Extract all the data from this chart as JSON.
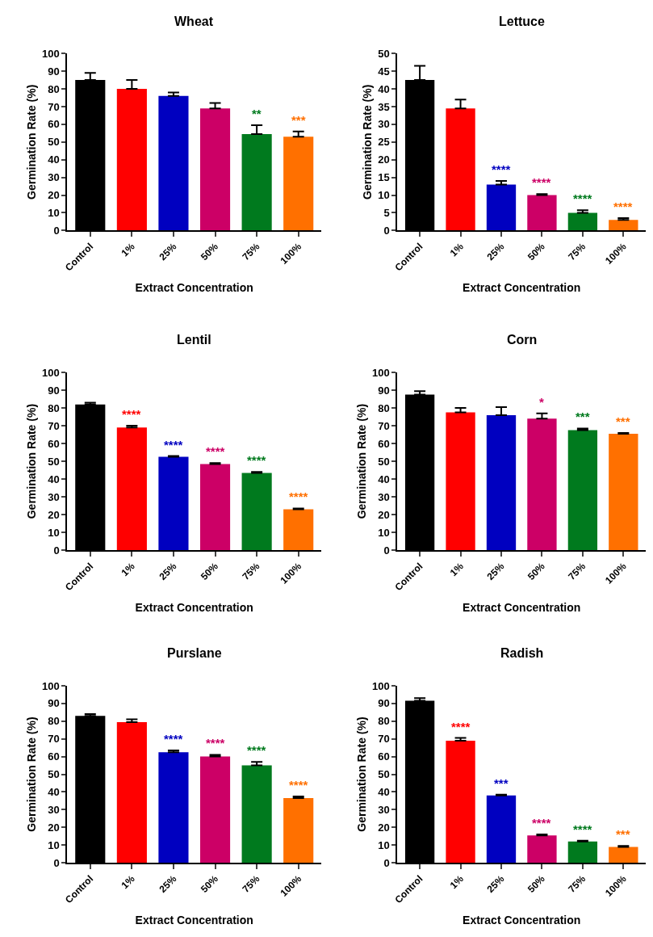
{
  "chart_data": [
    {
      "type": "bar",
      "title": "Wheat",
      "xlabel": "Extract Concentration",
      "ylabel": "Germination Rate (%)",
      "categories": [
        "Control",
        "1%",
        "25%",
        "50%",
        "75%",
        "100%"
      ],
      "values": [
        85,
        80,
        76,
        69,
        54.5,
        53
      ],
      "errors": [
        [
          85,
          89
        ],
        [
          80,
          85
        ],
        [
          76,
          78
        ],
        [
          69,
          72
        ],
        [
          54.5,
          59.5
        ],
        [
          53,
          56
        ]
      ],
      "colors": [
        "#000000",
        "#ff0000",
        "#0000c0",
        "#cc0066",
        "#007a1e",
        "#ff7000"
      ],
      "ylim": [
        0,
        100
      ],
      "yticks": [
        0,
        10,
        20,
        30,
        40,
        50,
        60,
        70,
        80,
        90,
        100
      ],
      "legend": false,
      "annotations": [
        {
          "text": "**",
          "x": "75%",
          "y": 59.5
        },
        {
          "text": "***",
          "x": "100%",
          "y": 56
        }
      ]
    },
    {
      "type": "bar",
      "title": "Lettuce",
      "xlabel": "Extract Concentration",
      "ylabel": "Germination Rate (%)",
      "categories": [
        "Control",
        "1%",
        "25%",
        "50%",
        "75%",
        "100%"
      ],
      "values": [
        42.5,
        34.5,
        13,
        10,
        5,
        3
      ],
      "errors": [
        [
          42.5,
          46.5
        ],
        [
          34.5,
          37
        ],
        [
          13,
          14
        ],
        [
          10,
          10.3
        ],
        [
          5,
          5.7
        ],
        [
          3,
          3.5
        ]
      ],
      "colors": [
        "#000000",
        "#ff0000",
        "#0000c0",
        "#cc0066",
        "#007a1e",
        "#ff7000"
      ],
      "ylim": [
        0,
        50
      ],
      "yticks": [
        0,
        5,
        10,
        15,
        20,
        25,
        30,
        35,
        40,
        45,
        50
      ],
      "legend": false,
      "annotations": [
        {
          "text": "****",
          "x": "25%",
          "y": 14
        },
        {
          "text": "****",
          "x": "50%",
          "y": 10.3
        },
        {
          "text": "****",
          "x": "75%",
          "y": 5.7
        },
        {
          "text": "****",
          "x": "100%",
          "y": 3.5
        }
      ]
    },
    {
      "type": "bar",
      "title": "Lentil",
      "xlabel": "Extract Concentration",
      "ylabel": "Germination Rate (%)",
      "categories": [
        "Control",
        "1%",
        "25%",
        "50%",
        "75%",
        "100%"
      ],
      "values": [
        82,
        69,
        52.5,
        48.5,
        43.5,
        23
      ],
      "errors": [
        [
          82,
          83
        ],
        [
          69,
          70
        ],
        [
          52.5,
          53
        ],
        [
          48.5,
          49
        ],
        [
          43.5,
          44
        ],
        [
          23,
          23.5
        ]
      ],
      "colors": [
        "#000000",
        "#ff0000",
        "#0000c0",
        "#cc0066",
        "#007a1e",
        "#ff7000"
      ],
      "ylim": [
        0,
        100
      ],
      "yticks": [
        0,
        10,
        20,
        30,
        40,
        50,
        60,
        70,
        80,
        90,
        100
      ],
      "legend": false,
      "annotations": [
        {
          "text": "****",
          "x": "1%",
          "y": 70
        },
        {
          "text": "****",
          "x": "25%",
          "y": 53
        },
        {
          "text": "****",
          "x": "50%",
          "y": 49
        },
        {
          "text": "****",
          "x": "75%",
          "y": 44
        },
        {
          "text": "****",
          "x": "100%",
          "y": 23.5
        }
      ]
    },
    {
      "type": "bar",
      "title": "Corn",
      "xlabel": "Extract Concentration",
      "ylabel": "Germination Rate (%)",
      "categories": [
        "Control",
        "1%",
        "25%",
        "50%",
        "75%",
        "100%"
      ],
      "values": [
        87.5,
        77.5,
        76,
        74,
        67.5,
        65.5
      ],
      "errors": [
        [
          87.5,
          89.5
        ],
        [
          77.5,
          80
        ],
        [
          76,
          80.5
        ],
        [
          74,
          77
        ],
        [
          67.5,
          68.5
        ],
        [
          65.5,
          66
        ]
      ],
      "colors": [
        "#000000",
        "#ff0000",
        "#0000c0",
        "#cc0066",
        "#007a1e",
        "#ff7000"
      ],
      "ylim": [
        0,
        100
      ],
      "yticks": [
        0,
        10,
        20,
        30,
        40,
        50,
        60,
        70,
        80,
        90,
        100
      ],
      "legend": false,
      "annotations": [
        {
          "text": "*",
          "x": "50%",
          "y": 77
        },
        {
          "text": "***",
          "x": "75%",
          "y": 68.5
        },
        {
          "text": "***",
          "x": "100%",
          "y": 66
        }
      ]
    },
    {
      "type": "bar",
      "title": "Purslane",
      "xlabel": "Extract Concentration",
      "ylabel": "Germination Rate (%)",
      "categories": [
        "Control",
        "1%",
        "25%",
        "50%",
        "75%",
        "100%"
      ],
      "values": [
        83,
        79.5,
        62.5,
        60,
        55,
        36.5
      ],
      "errors": [
        [
          83,
          84
        ],
        [
          79.5,
          81
        ],
        [
          62.5,
          63.5
        ],
        [
          60,
          61
        ],
        [
          55,
          57
        ],
        [
          36.5,
          37.5
        ]
      ],
      "colors": [
        "#000000",
        "#ff0000",
        "#0000c0",
        "#cc0066",
        "#007a1e",
        "#ff7000"
      ],
      "ylim": [
        0,
        100
      ],
      "yticks": [
        0,
        10,
        20,
        30,
        40,
        50,
        60,
        70,
        80,
        90,
        100
      ],
      "legend": false,
      "annotations": [
        {
          "text": "****",
          "x": "25%",
          "y": 63.5
        },
        {
          "text": "****",
          "x": "50%",
          "y": 61
        },
        {
          "text": "****",
          "x": "75%",
          "y": 57
        },
        {
          "text": "****",
          "x": "100%",
          "y": 37.5
        }
      ]
    },
    {
      "type": "bar",
      "title": "Radish",
      "xlabel": "Extract Concentration",
      "ylabel": "Germination Rate (%)",
      "categories": [
        "Control",
        "1%",
        "25%",
        "50%",
        "75%",
        "100%"
      ],
      "values": [
        91.5,
        69,
        38,
        15.5,
        12,
        9
      ],
      "errors": [
        [
          91.5,
          93
        ],
        [
          69,
          70.5
        ],
        [
          38,
          38.5
        ],
        [
          15.5,
          16
        ],
        [
          12,
          12.5
        ],
        [
          9,
          9.5
        ]
      ],
      "colors": [
        "#000000",
        "#ff0000",
        "#0000c0",
        "#cc0066",
        "#007a1e",
        "#ff7000"
      ],
      "ylim": [
        0,
        100
      ],
      "yticks": [
        0,
        10,
        20,
        30,
        40,
        50,
        60,
        70,
        80,
        90,
        100
      ],
      "legend": false,
      "annotations": [
        {
          "text": "****",
          "x": "1%",
          "y": 70.5
        },
        {
          "text": "***",
          "x": "25%",
          "y": 38.5
        },
        {
          "text": "****",
          "x": "50%",
          "y": 16
        },
        {
          "text": "****",
          "x": "75%",
          "y": 12.5
        },
        {
          "text": "***",
          "x": "100%",
          "y": 9.5
        }
      ]
    }
  ]
}
